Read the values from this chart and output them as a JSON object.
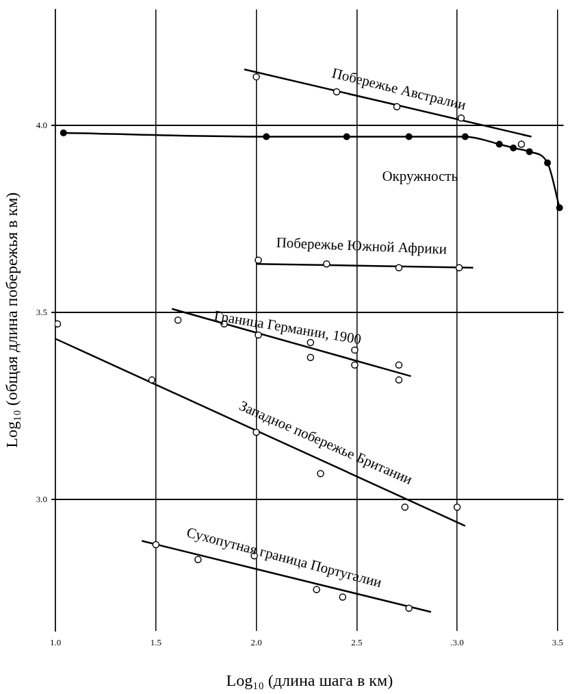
{
  "chart_data": {
    "type": "scatter",
    "xlabel": "Log₁₀ (длина шага в км)",
    "ylabel": "Log₁₀ (общая длина побережья в км)",
    "xlim": [
      1.0,
      3.53
    ],
    "ylim": [
      2.65,
      4.31
    ],
    "xticks": [
      {
        "value": 1.0,
        "label": "1.0"
      },
      {
        "value": 1.5,
        "label": "1.5"
      },
      {
        "value": 2.0,
        "label": "2.0"
      },
      {
        "value": 2.5,
        "label": "2.5"
      },
      {
        "value": 3.0,
        "label": ".3.0"
      },
      {
        "value": 3.5,
        "label": "3.5"
      }
    ],
    "yticks": [
      {
        "value": 3.0,
        "label": "3.0"
      },
      {
        "value": 3.5,
        "label": "3.5"
      },
      {
        "value": 4.0,
        "label": "4.0"
      }
    ],
    "grid": true,
    "series": [
      {
        "name": "Побережье Австралии",
        "type": "scatter",
        "marker": "circle",
        "color": "#000000",
        "x": [
          2.0,
          2.4,
          2.7,
          3.02,
          3.32
        ],
        "values": [
          4.13,
          4.09,
          4.05,
          4.02,
          3.95
        ]
      },
      {
        "type": "line",
        "marker": "none",
        "color": "#000000",
        "x": [
          1.94,
          3.37
        ],
        "values": [
          4.15,
          3.97
        ]
      },
      {
        "name": "Окружность",
        "type": "line",
        "marker": "circle",
        "color": "#000000",
        "x": [
          1.04,
          2.05,
          2.45,
          2.76,
          3.04,
          3.21,
          3.28,
          3.36,
          3.45,
          3.51
        ],
        "values": [
          3.98,
          3.97,
          3.97,
          3.97,
          3.97,
          3.95,
          3.94,
          3.93,
          3.9,
          3.78
        ]
      },
      {
        "name": "Побережье Южной Африки",
        "type": "scatter",
        "marker": "circle",
        "color": "#000000",
        "x": [
          2.01,
          2.35,
          2.71,
          3.01
        ],
        "values": [
          3.64,
          3.63,
          3.62,
          3.62
        ]
      },
      {
        "type": "line",
        "marker": "none",
        "color": "#000000",
        "x": [
          2.0,
          3.08
        ],
        "values": [
          3.63,
          3.62
        ]
      },
      {
        "name": "Граница Германии, 1900",
        "type": "scatter",
        "marker": "circle",
        "color": "#000000",
        "x": [
          1.01,
          1.61,
          1.84,
          2.01,
          2.27,
          2.27,
          2.49,
          2.49,
          2.71,
          2.71
        ],
        "values": [
          3.47,
          3.48,
          3.47,
          3.44,
          3.42,
          3.38,
          3.4,
          3.36,
          3.36,
          3.32
        ]
      },
      {
        "type": "line",
        "marker": "none",
        "color": "#000000",
        "x": [
          1.58,
          2.77
        ],
        "values": [
          3.51,
          3.33
        ]
      },
      {
        "name": "Западное побережье Британии",
        "type": "scatter",
        "marker": "circle",
        "color": "#000000",
        "x": [
          1.48,
          2.0,
          2.32,
          2.74,
          3.0
        ],
        "values": [
          3.32,
          3.18,
          3.07,
          2.98,
          2.98
        ]
      },
      {
        "type": "line",
        "marker": "none",
        "color": "#000000",
        "x": [
          1.0,
          3.04
        ],
        "values": [
          3.43,
          2.93
        ]
      },
      {
        "name": "Сухопутная граница Португалии",
        "type": "scatter",
        "marker": "circle",
        "color": "#000000",
        "x": [
          1.5,
          1.71,
          1.99,
          2.3,
          2.43,
          2.76
        ],
        "values": [
          2.88,
          2.84,
          2.85,
          2.76,
          2.74,
          2.71
        ]
      },
      {
        "type": "line",
        "marker": "none",
        "color": "#000000",
        "x": [
          1.43,
          2.87
        ],
        "values": [
          2.89,
          2.7
        ]
      }
    ]
  }
}
